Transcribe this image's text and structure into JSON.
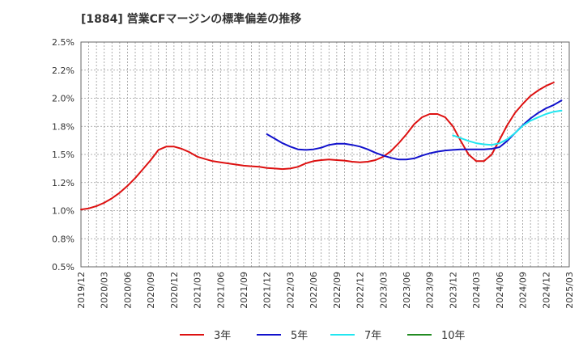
{
  "chart_data": {
    "type": "line",
    "title": "[1884]  営業CFマージンの標準偏差の推移",
    "xlabel": "",
    "ylabel": "",
    "ylim": [
      0.5,
      2.5
    ],
    "y_ticks": [
      0.5,
      0.75,
      1.0,
      1.25,
      1.5,
      1.75,
      2.0,
      2.25,
      2.5
    ],
    "y_tick_labels": [
      "0.5%",
      "0.8%",
      "1.0%",
      "1.2%",
      "1.5%",
      "1.8%",
      "2.0%",
      "2.2%",
      "2.5%"
    ],
    "x_tick_labels": [
      "2019/12",
      "2020/03",
      "2020/06",
      "2020/09",
      "2020/12",
      "2021/03",
      "2021/06",
      "2021/09",
      "2021/12",
      "2022/03",
      "2022/06",
      "2022/09",
      "2022/12",
      "2023/03",
      "2023/06",
      "2023/09",
      "2023/12",
      "2024/03",
      "2024/06",
      "2024/09",
      "2024/12",
      "2025/03"
    ],
    "grid": true,
    "legend_position": "bottom",
    "series": [
      {
        "name": "3年",
        "color": "#dd1111",
        "start_index": 0,
        "values": [
          1.01,
          1.02,
          1.04,
          1.07,
          1.11,
          1.16,
          1.22,
          1.29,
          1.37,
          1.45,
          1.54,
          1.57,
          1.57,
          1.55,
          1.52,
          1.48,
          1.46,
          1.44,
          1.43,
          1.42,
          1.41,
          1.4,
          1.395,
          1.39,
          1.38,
          1.375,
          1.37,
          1.375,
          1.39,
          1.42,
          1.44,
          1.45,
          1.455,
          1.45,
          1.445,
          1.435,
          1.43,
          1.435,
          1.45,
          1.48,
          1.53,
          1.6,
          1.68,
          1.77,
          1.83,
          1.86,
          1.86,
          1.83,
          1.75,
          1.62,
          1.5,
          1.44,
          1.44,
          1.5,
          1.63,
          1.76,
          1.87,
          1.95,
          2.02,
          2.07,
          2.11,
          2.14
        ]
      },
      {
        "name": "5年",
        "color": "#1111cc",
        "start_index": 24,
        "values": [
          1.68,
          1.64,
          1.6,
          1.57,
          1.545,
          1.54,
          1.545,
          1.56,
          1.585,
          1.595,
          1.595,
          1.585,
          1.57,
          1.545,
          1.515,
          1.49,
          1.47,
          1.455,
          1.455,
          1.465,
          1.49,
          1.51,
          1.525,
          1.535,
          1.54,
          1.545,
          1.545,
          1.545,
          1.545,
          1.55,
          1.565,
          1.62,
          1.69,
          1.76,
          1.82,
          1.87,
          1.91,
          1.94,
          1.98
        ]
      },
      {
        "name": "7年",
        "color": "#22e6f0",
        "start_index": 48,
        "values": [
          1.67,
          1.645,
          1.62,
          1.6,
          1.59,
          1.585,
          1.6,
          1.635,
          1.69,
          1.755,
          1.8,
          1.83,
          1.86,
          1.88,
          1.89
        ]
      },
      {
        "name": "10年",
        "color": "#228b22",
        "start_index": 0,
        "values": []
      }
    ]
  }
}
